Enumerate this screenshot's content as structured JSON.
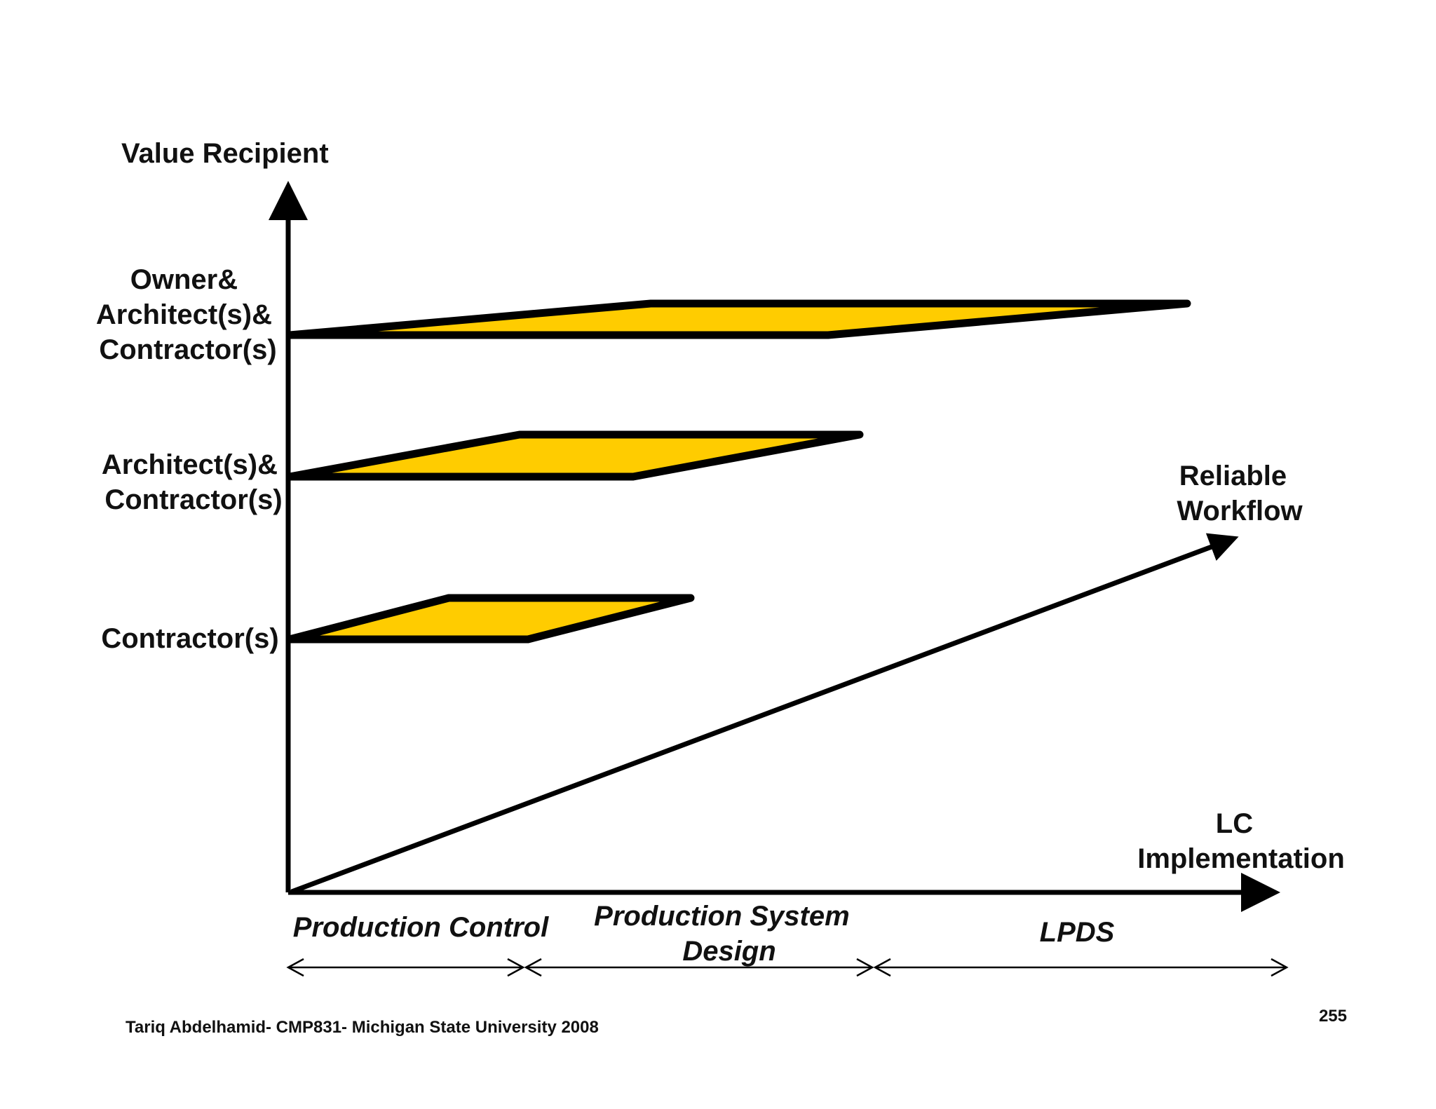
{
  "diagram": {
    "y_axis_title": "Value Recipient",
    "x_axis_title": [
      "LC",
      "Implementation"
    ],
    "trend_label": [
      "Reliable",
      "Workflow"
    ],
    "levels": [
      {
        "id": "owner",
        "label": [
          "Owner&",
          "Architect(s)&",
          "Contractor(s)"
        ]
      },
      {
        "id": "architect",
        "label": [
          "Architect(s)&",
          "Contractor(s)"
        ]
      },
      {
        "id": "contractor",
        "label": [
          "Contractor(s)"
        ]
      }
    ],
    "phases": [
      {
        "id": "production-control",
        "label": [
          "Production Control"
        ]
      },
      {
        "id": "production-system-design",
        "label": [
          "Production System",
          "Design"
        ]
      },
      {
        "id": "lpds",
        "label": [
          "LPDS"
        ]
      }
    ]
  },
  "footer": {
    "credit": "Tariq Abdelhamid- CMP831- Michigan State University 2008",
    "page_number": "255"
  },
  "colors": {
    "fill": "#FFCC00",
    "stroke": "#000000",
    "text": "#111111",
    "background": "#FFFFFF"
  }
}
